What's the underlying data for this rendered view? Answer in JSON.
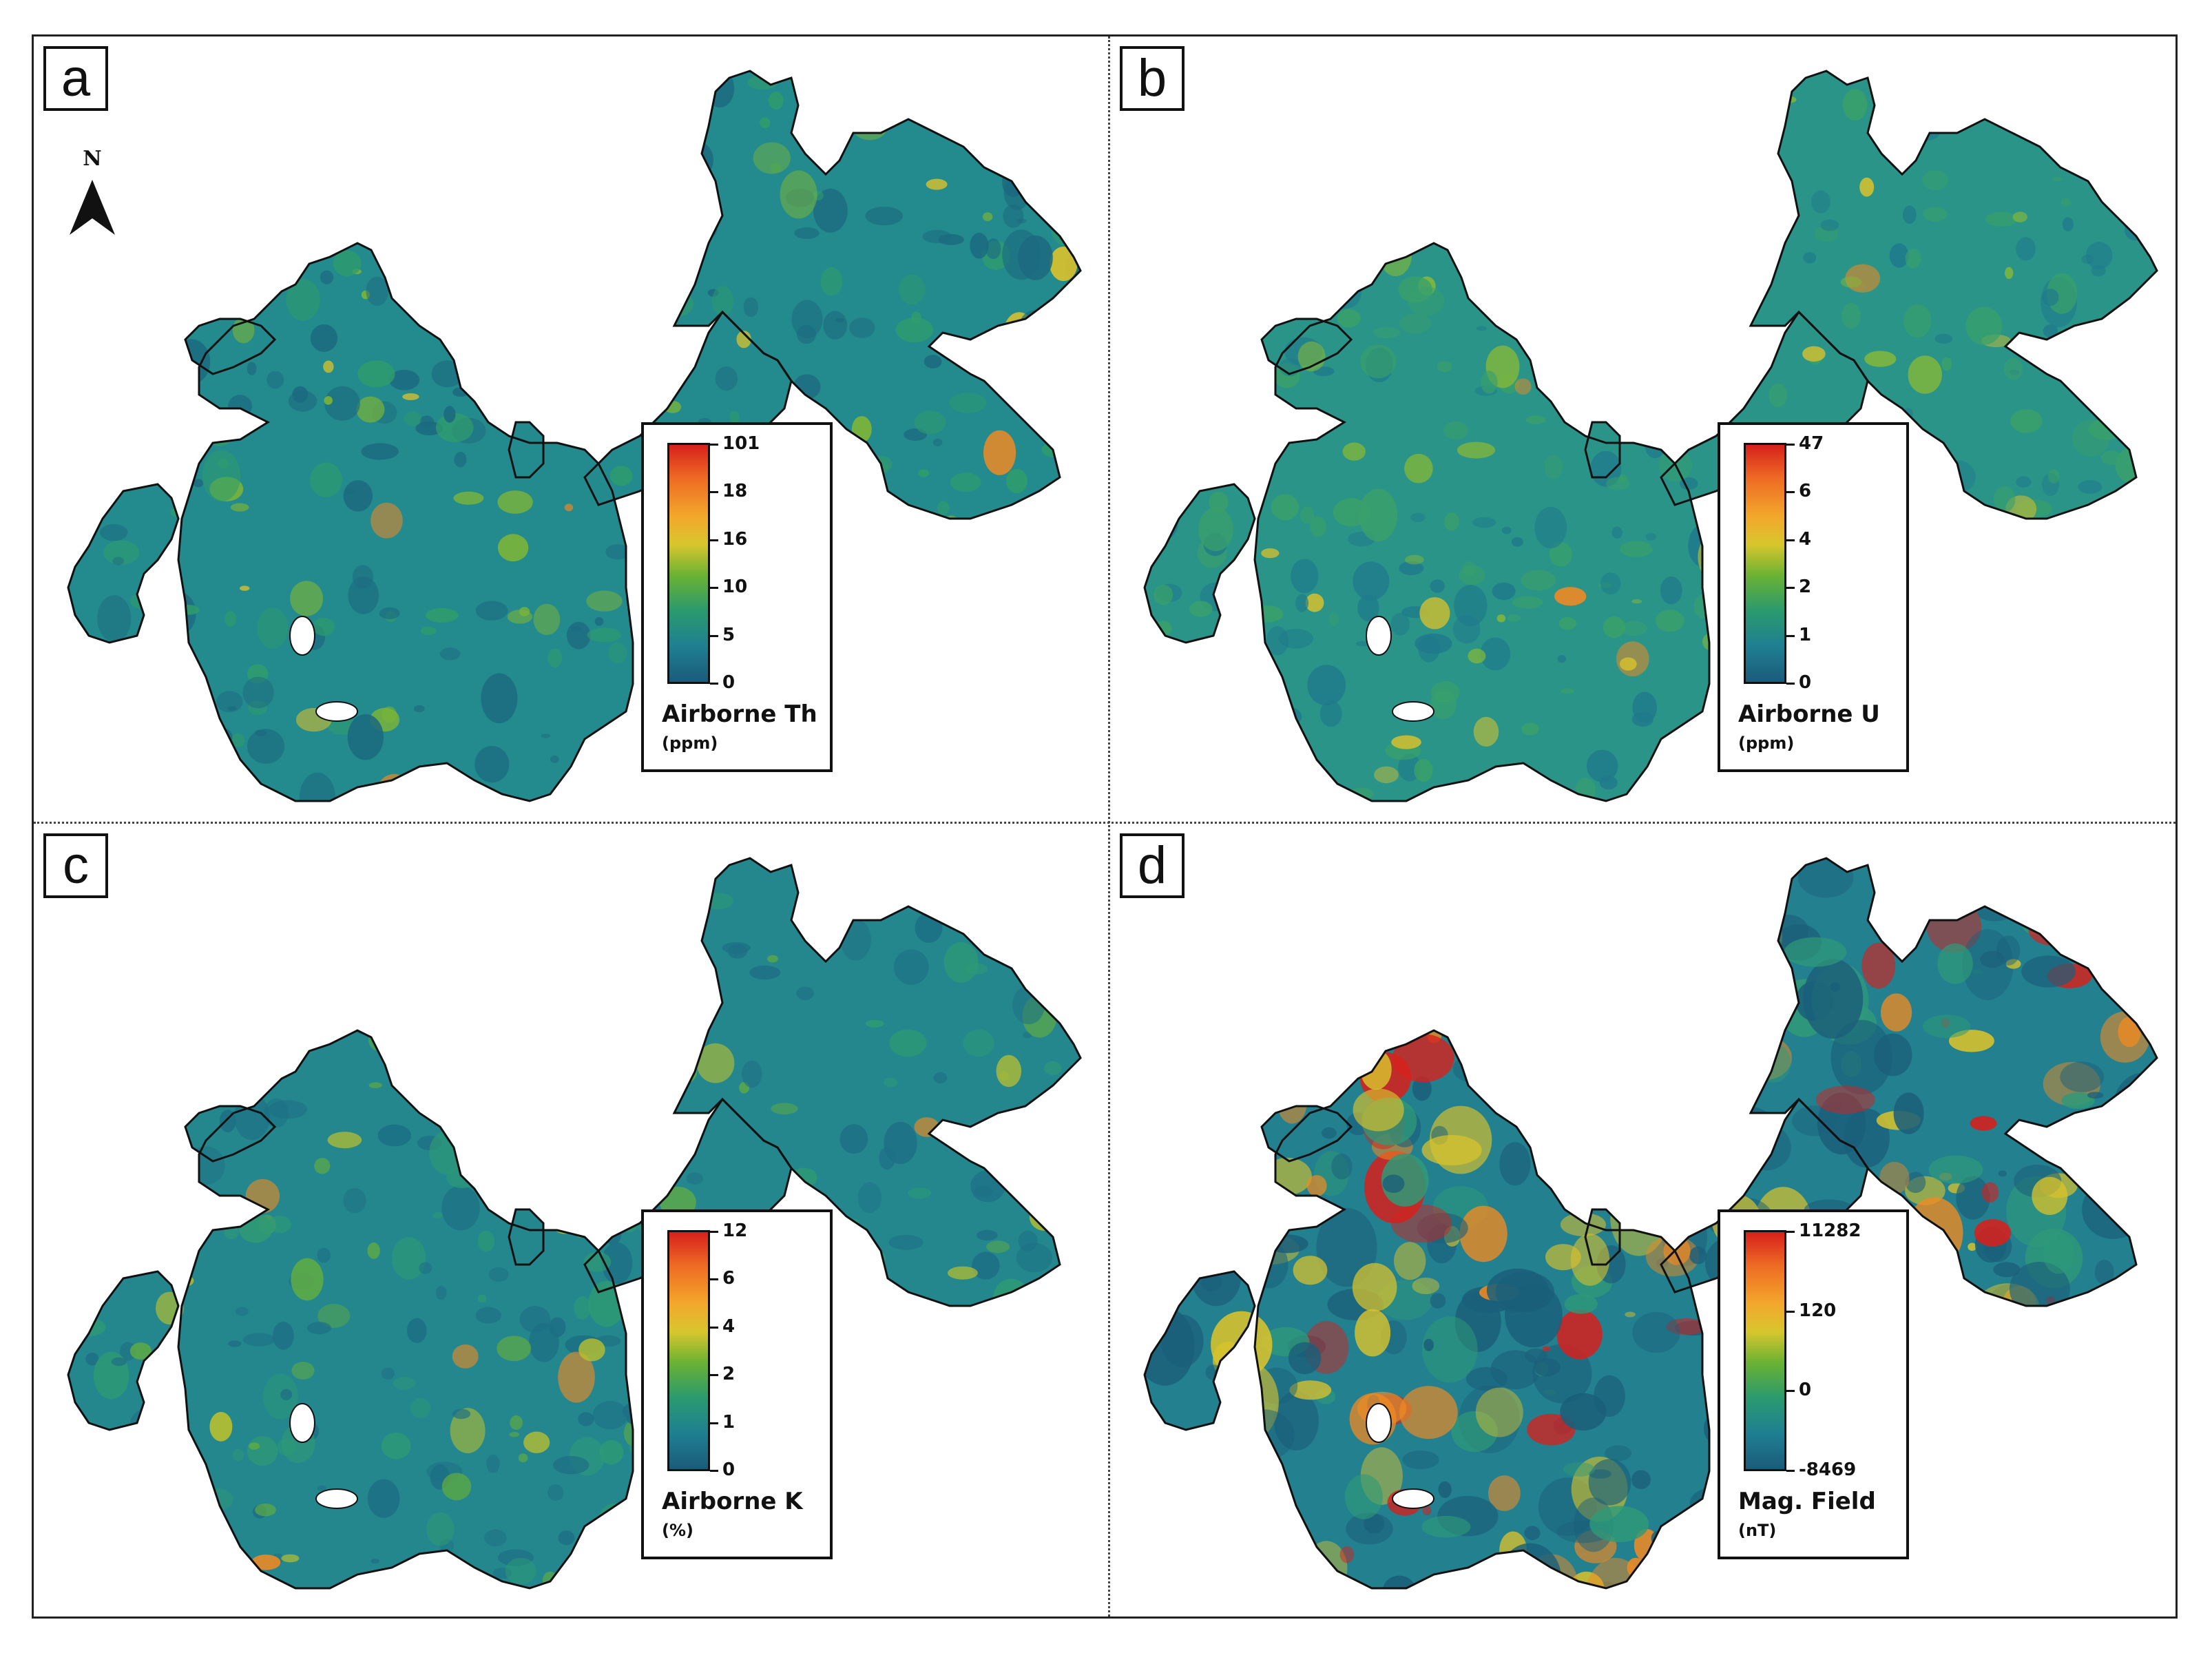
{
  "figure": {
    "panels": [
      {
        "letter": "a",
        "legend": {
          "title": "Airborne Th",
          "unit": "(ppm)",
          "ticks": [
            "101",
            "18",
            "16",
            "10",
            "5",
            "0"
          ]
        },
        "palette": [
          "#1c6a80",
          "#238a8d",
          "#2f9c6c",
          "#7db536",
          "#dbc22c",
          "#ee8a23"
        ],
        "north_label": "N"
      },
      {
        "letter": "b",
        "legend": {
          "title": "Airborne U",
          "unit": "(ppm)",
          "ticks": [
            "47",
            "6",
            "4",
            "2",
            "1",
            "0"
          ]
        },
        "palette": [
          "#1f7a8c",
          "#2a9488",
          "#39a06a",
          "#85b838",
          "#d9c22c",
          "#ee8a23"
        ]
      },
      {
        "letter": "c",
        "legend": {
          "title": "Airborne K",
          "unit": "(%)",
          "ticks": [
            "12",
            "6",
            "4",
            "2",
            "1",
            "0"
          ]
        },
        "palette": [
          "#1d6f84",
          "#24878e",
          "#2e9a74",
          "#62ad3e",
          "#b8bf2f",
          "#ea8a25"
        ]
      },
      {
        "letter": "d",
        "legend": {
          "title": "Mag. Field",
          "unit": "(nT)",
          "ticks": [
            "11282",
            "120",
            "0",
            "-8469"
          ]
        },
        "palette": [
          "#1b5f7a",
          "#23808f",
          "#2f9a78",
          "#d8c22c",
          "#f08a22",
          "#d7201c"
        ]
      }
    ]
  }
}
